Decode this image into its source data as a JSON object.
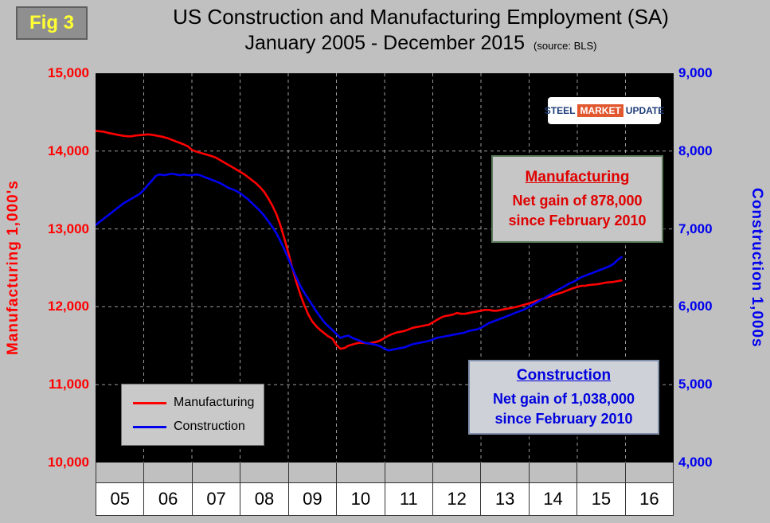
{
  "fig_label": "Fig 3",
  "title": {
    "line1": "US Construction and Manufacturing Employment (SA)",
    "line2": "January 2005 - December 2015",
    "source": "(source: BLS)"
  },
  "logo": {
    "steel": "STEEL",
    "market": "MARKET",
    "update": "UPDATE"
  },
  "left_axis": {
    "title": "Manufacturing  1,000's",
    "color": "#ff0000",
    "ticks": [
      "15,000",
      "14,000",
      "13,000",
      "12,000",
      "11,000",
      "10,000"
    ]
  },
  "right_axis": {
    "title": "Construction 1,000s",
    "color": "#0000ee",
    "ticks": [
      "9,000",
      "8,000",
      "7,000",
      "6,000",
      "5,000",
      "4,000"
    ]
  },
  "x_axis": {
    "years": [
      "05",
      "06",
      "07",
      "08",
      "09",
      "10",
      "11",
      "12",
      "13",
      "14",
      "15",
      "16"
    ]
  },
  "annotations": {
    "manufacturing": {
      "title": "Manufacturing",
      "line1": "Net gain of 878,000",
      "line2": "since February 2010"
    },
    "construction": {
      "title": "Construction",
      "line1": "Net gain of 1,038,000",
      "line2": "since February 2010"
    }
  },
  "chart_data": {
    "type": "line",
    "title": "US Construction and Manufacturing Employment (SA)",
    "subtitle": "January 2005 - December 2015",
    "source": "BLS",
    "x_unit": "month",
    "x_start": "2005-01",
    "x_end": "2015-12",
    "x_axis_span_months": 144,
    "grid": true,
    "legend_position": "inside-bottom-left",
    "left_axis": {
      "label": "Manufacturing 1,000's",
      "range": [
        10000,
        15000
      ],
      "tick_interval": 1000
    },
    "right_axis": {
      "label": "Construction 1,000s",
      "range": [
        4000,
        9000
      ],
      "tick_interval": 1000
    },
    "series": [
      {
        "name": "Manufacturing",
        "color": "#ff0000",
        "axis": "left",
        "monthly_values": [
          14260,
          14255,
          14250,
          14235,
          14225,
          14215,
          14205,
          14195,
          14190,
          14190,
          14200,
          14205,
          14210,
          14215,
          14210,
          14200,
          14190,
          14180,
          14165,
          14145,
          14125,
          14105,
          14085,
          14060,
          14015,
          13995,
          13980,
          13965,
          13950,
          13935,
          13915,
          13885,
          13855,
          13825,
          13795,
          13765,
          13735,
          13705,
          13665,
          13625,
          13585,
          13535,
          13475,
          13395,
          13305,
          13195,
          13055,
          12880,
          12700,
          12500,
          12320,
          12160,
          12020,
          11900,
          11810,
          11750,
          11700,
          11660,
          11620,
          11590,
          11510,
          11460,
          11470,
          11500,
          11515,
          11530,
          11540,
          11535,
          11530,
          11540,
          11550,
          11570,
          11600,
          11630,
          11650,
          11670,
          11680,
          11690,
          11710,
          11730,
          11740,
          11750,
          11760,
          11770,
          11800,
          11830,
          11860,
          11880,
          11890,
          11900,
          11920,
          11910,
          11910,
          11920,
          11930,
          11940,
          11950,
          11960,
          11960,
          11950,
          11950,
          11960,
          11970,
          11980,
          11990,
          12000,
          12015,
          12030,
          12045,
          12060,
          12080,
          12095,
          12110,
          12130,
          12150,
          12165,
          12180,
          12200,
          12220,
          12240,
          12255,
          12270,
          12270,
          12280,
          12285,
          12290,
          12300,
          12310,
          12315,
          12320,
          12330,
          12338
        ]
      },
      {
        "name": "Construction",
        "color": "#0000ee",
        "axis": "right",
        "monthly_values": [
          7050,
          7090,
          7130,
          7170,
          7210,
          7250,
          7290,
          7330,
          7360,
          7390,
          7420,
          7450,
          7500,
          7560,
          7620,
          7680,
          7700,
          7690,
          7700,
          7710,
          7700,
          7690,
          7700,
          7690,
          7690,
          7700,
          7690,
          7670,
          7650,
          7630,
          7610,
          7590,
          7560,
          7530,
          7510,
          7490,
          7460,
          7420,
          7380,
          7330,
          7280,
          7230,
          7170,
          7100,
          7030,
          6950,
          6850,
          6740,
          6620,
          6500,
          6380,
          6270,
          6180,
          6100,
          6020,
          5940,
          5870,
          5800,
          5750,
          5700,
          5650,
          5600,
          5620,
          5630,
          5600,
          5580,
          5560,
          5540,
          5530,
          5520,
          5510,
          5490,
          5460,
          5440,
          5450,
          5460,
          5470,
          5480,
          5500,
          5520,
          5530,
          5540,
          5550,
          5560,
          5580,
          5600,
          5610,
          5620,
          5630,
          5640,
          5650,
          5660,
          5670,
          5690,
          5700,
          5710,
          5730,
          5760,
          5790,
          5810,
          5830,
          5850,
          5870,
          5890,
          5910,
          5930,
          5950,
          5970,
          6000,
          6030,
          6060,
          6090,
          6120,
          6150,
          6180,
          6210,
          6240,
          6270,
          6300,
          6320,
          6350,
          6380,
          6400,
          6420,
          6440,
          6460,
          6480,
          6500,
          6520,
          6550,
          6600,
          6638
        ]
      }
    ]
  }
}
